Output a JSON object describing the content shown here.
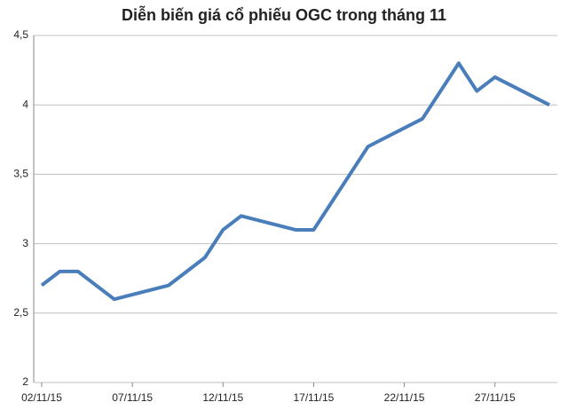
{
  "chart_data": {
    "type": "line",
    "title": "Diễn biến giá cổ phiếu OGC trong tháng 11",
    "x": [
      "02/11/15",
      "03/11/15",
      "04/11/15",
      "06/11/15",
      "09/11/15",
      "11/11/15",
      "12/11/15",
      "13/11/15",
      "16/11/15",
      "17/11/15",
      "20/11/15",
      "23/11/15",
      "25/11/15",
      "26/11/15",
      "27/11/15",
      "30/11/15"
    ],
    "series": [
      {
        "name": "OGC",
        "color": "#4a7ebb",
        "values": [
          2.7,
          2.8,
          2.8,
          2.6,
          2.7,
          2.9,
          3.1,
          3.2,
          3.1,
          3.1,
          3.7,
          3.9,
          4.3,
          4.1,
          4.2,
          4.0
        ]
      }
    ],
    "xticks": [
      "02/11/15",
      "07/11/15",
      "12/11/15",
      "17/11/15",
      "22/11/15",
      "27/11/15"
    ],
    "ylim": [
      2,
      4.5
    ],
    "yticks": [
      2,
      {
        "value": 2.5,
        "label": "2,5"
      },
      3,
      {
        "value": 3.5,
        "label": "3,5"
      },
      4,
      {
        "value": 4.5,
        "label": "4,5"
      }
    ],
    "grid": true
  }
}
